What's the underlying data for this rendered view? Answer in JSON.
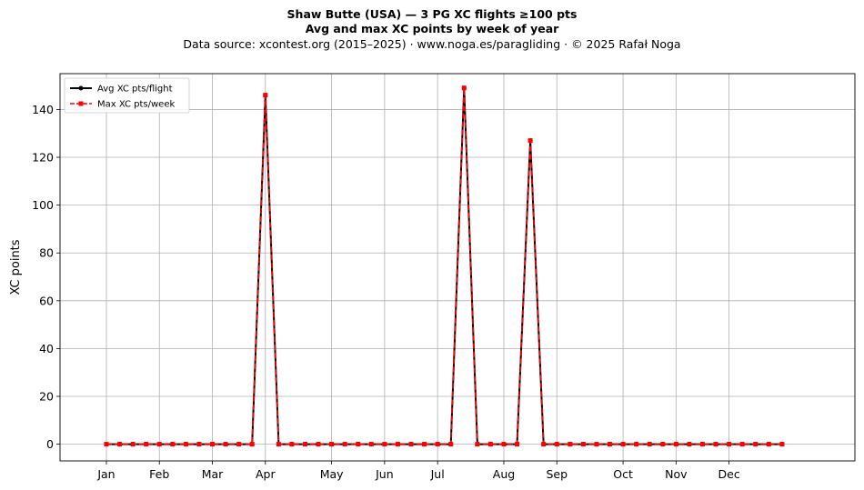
{
  "title_line1": "Shaw Butte (USA)  —  3 PG XC flights ≥100 pts",
  "title_line2": "Avg and max XC points by week of year",
  "title_line3": "Data source: xcontest.org (2015–2025)  ·  www.noga.es/paragliding  ·  © 2025 Rafał Noga",
  "chart_data": {
    "type": "line",
    "ylabel": "XC points",
    "xlabel": "",
    "ylim": [
      -7,
      155
    ],
    "xlim": [
      -3.5,
      56.5
    ],
    "grid": true,
    "legend_position": "top-left",
    "month_labels": [
      "Jan",
      "Feb",
      "Mar",
      "Apr",
      "May",
      "Jun",
      "Jul",
      "Aug",
      "Sep",
      "Oct",
      "Nov",
      "Dec"
    ],
    "month_tick_x": [
      0,
      4,
      8,
      12,
      17,
      21,
      25,
      30,
      34,
      39,
      43,
      47
    ],
    "y_ticks": [
      0,
      20,
      40,
      60,
      80,
      100,
      120,
      140
    ],
    "x_weeks": [
      0,
      1,
      2,
      3,
      4,
      5,
      6,
      7,
      8,
      9,
      10,
      11,
      12,
      13,
      14,
      15,
      16,
      17,
      18,
      19,
      20,
      21,
      22,
      23,
      24,
      25,
      26,
      27,
      28,
      29,
      30,
      31,
      32,
      33,
      34,
      35,
      36,
      37,
      38,
      39,
      40,
      41,
      42,
      43,
      44,
      45,
      46,
      47,
      48,
      49,
      50,
      51
    ],
    "series": [
      {
        "name": "Avg XC pts/flight",
        "color": "#000000",
        "style": "solid",
        "marker": "circle",
        "values": [
          0,
          0,
          0,
          0,
          0,
          0,
          0,
          0,
          0,
          0,
          0,
          0,
          146,
          0,
          0,
          0,
          0,
          0,
          0,
          0,
          0,
          0,
          0,
          0,
          0,
          0,
          0,
          149,
          0,
          0,
          0,
          0,
          127,
          0,
          0,
          0,
          0,
          0,
          0,
          0,
          0,
          0,
          0,
          0,
          0,
          0,
          0,
          0,
          0,
          0,
          0,
          0
        ]
      },
      {
        "name": "Max XC pts/week",
        "color": "#ff0000",
        "style": "dashed",
        "marker": "square",
        "values": [
          0,
          0,
          0,
          0,
          0,
          0,
          0,
          0,
          0,
          0,
          0,
          0,
          146,
          0,
          0,
          0,
          0,
          0,
          0,
          0,
          0,
          0,
          0,
          0,
          0,
          0,
          0,
          149,
          0,
          0,
          0,
          0,
          127,
          0,
          0,
          0,
          0,
          0,
          0,
          0,
          0,
          0,
          0,
          0,
          0,
          0,
          0,
          0,
          0,
          0,
          0,
          0
        ]
      }
    ]
  }
}
